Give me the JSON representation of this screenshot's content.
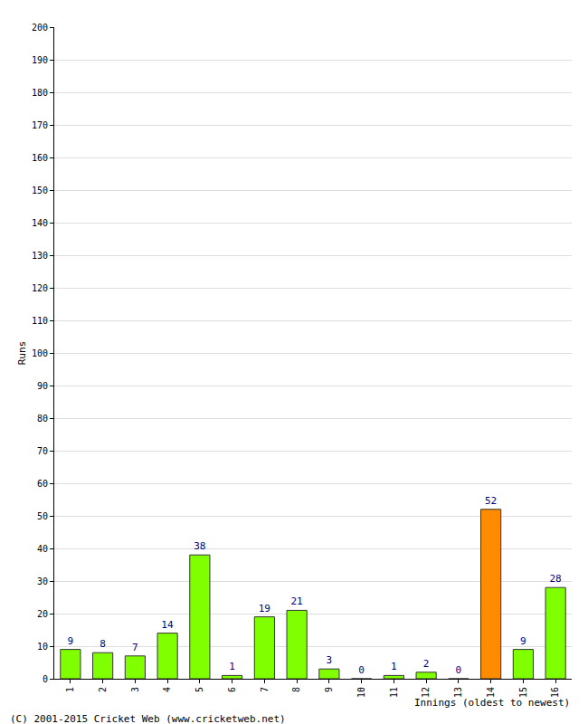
{
  "chart_data": {
    "type": "bar",
    "x_label": "Innings (oldest to newest)",
    "y_label": "Runs",
    "categories": [
      "1",
      "2",
      "3",
      "4",
      "5",
      "6",
      "7",
      "8",
      "9",
      "10",
      "11",
      "12",
      "13",
      "14",
      "15",
      "16"
    ],
    "values": [
      9,
      8,
      7,
      14,
      38,
      1,
      19,
      21,
      3,
      0,
      1,
      2,
      0,
      52,
      9,
      28
    ],
    "colors": [
      "#7fff00",
      "#7fff00",
      "#7fff00",
      "#7fff00",
      "#7fff00",
      "#7fff00",
      "#7fff00",
      "#7fff00",
      "#7fff00",
      "#7fff00",
      "#7fff00",
      "#7fff00",
      "#7fff00",
      "#ff8c00",
      "#7fff00",
      "#7fff00"
    ],
    "ylim": [
      0,
      200
    ],
    "yticks": [
      0,
      10,
      20,
      30,
      40,
      50,
      60,
      70,
      80,
      90,
      100,
      110,
      120,
      130,
      140,
      150,
      160,
      170,
      180,
      190,
      200
    ],
    "grid": true,
    "data_labels": true,
    "annotations": [
      "(C) 2001-2015 Cricket Web (www.cricketweb.net)"
    ]
  }
}
